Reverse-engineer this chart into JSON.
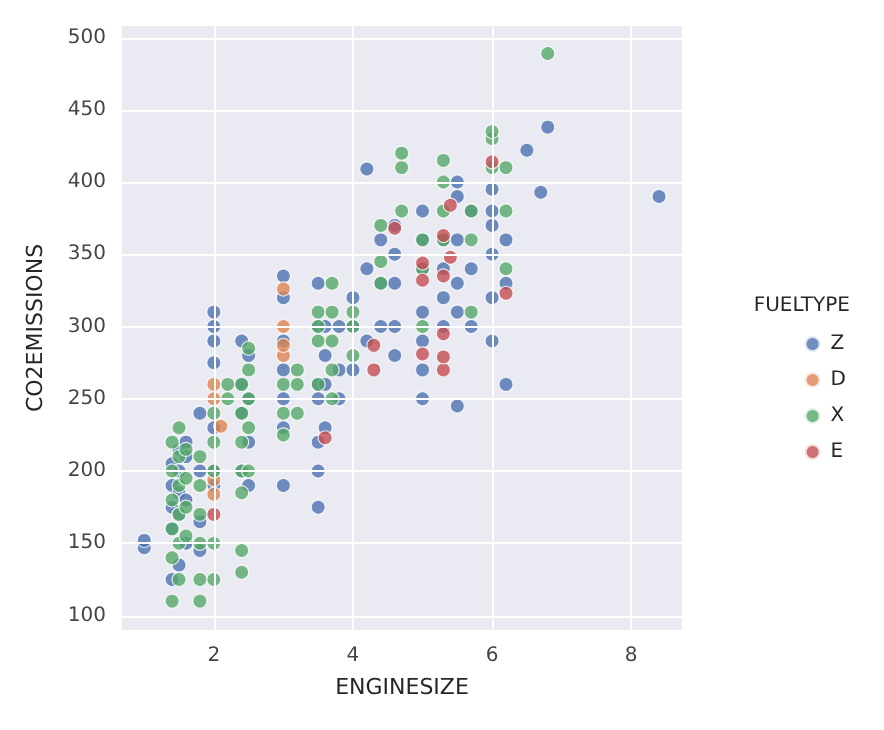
{
  "chart_data": {
    "type": "scatter",
    "xlabel": "ENGINESIZE",
    "ylabel": "CO2EMISSIONS",
    "legend_title": "FUELTYPE",
    "legend": "right",
    "grid": true,
    "marker": "circle",
    "xlim": [
      0.68,
      8.73
    ],
    "xticks": [
      2,
      4,
      6,
      8
    ],
    "ylim": [
      90,
      508
    ],
    "yticks": [
      100,
      150,
      200,
      250,
      300,
      350,
      400,
      450,
      500
    ],
    "series": [
      {
        "name": "Z",
        "color": "#4c72b0",
        "x": [
          1.0,
          1.0,
          1.4,
          1.4,
          1.4,
          1.4,
          1.4,
          1.5,
          1.5,
          1.5,
          1.5,
          1.5,
          1.6,
          1.6,
          1.6,
          1.6,
          1.8,
          1.8,
          1.8,
          1.8,
          2.0,
          2.0,
          2.0,
          2.0,
          2.0,
          2.0,
          2.0,
          2.4,
          2.4,
          2.4,
          2.4,
          2.5,
          2.5,
          2.5,
          2.5,
          3.0,
          3.0,
          3.0,
          3.0,
          3.0,
          3.0,
          3.0,
          3.5,
          3.5,
          3.5,
          3.5,
          3.5,
          3.5,
          3.5,
          3.6,
          3.6,
          3.6,
          3.6,
          3.8,
          3.8,
          3.8,
          4.0,
          4.0,
          4.0,
          4.2,
          4.2,
          4.2,
          4.4,
          4.4,
          4.4,
          4.6,
          4.6,
          4.6,
          4.6,
          4.6,
          5.0,
          5.0,
          5.0,
          5.0,
          5.0,
          5.0,
          5.0,
          5.3,
          5.3,
          5.3,
          5.3,
          5.5,
          5.5,
          5.5,
          5.5,
          5.5,
          5.5,
          5.7,
          5.7,
          5.7,
          6.0,
          6.0,
          6.0,
          6.0,
          6.0,
          6.0,
          6.2,
          6.2,
          6.2,
          6.5,
          6.7,
          6.8,
          8.4
        ],
        "values": [
          147,
          152,
          125,
          160,
          175,
          190,
          205,
          135,
          170,
          185,
          200,
          215,
          150,
          180,
          210,
          220,
          145,
          165,
          200,
          240,
          190,
          200,
          230,
          275,
          290,
          300,
          310,
          200,
          240,
          260,
          290,
          190,
          220,
          250,
          280,
          190,
          230,
          250,
          270,
          290,
          320,
          335,
          175,
          200,
          220,
          250,
          260,
          300,
          330,
          230,
          260,
          280,
          300,
          250,
          270,
          300,
          270,
          300,
          320,
          290,
          340,
          409,
          300,
          330,
          360,
          280,
          300,
          330,
          350,
          370,
          250,
          270,
          290,
          310,
          340,
          360,
          380,
          300,
          320,
          340,
          360,
          245,
          310,
          330,
          360,
          390,
          400,
          300,
          340,
          380,
          290,
          320,
          350,
          370,
          380,
          395,
          260,
          330,
          360,
          422,
          393,
          438,
          390
        ]
      },
      {
        "name": "D",
        "color": "#dd8452",
        "x": [
          2.0,
          2.0,
          2.0,
          2.0,
          2.1,
          3.0,
          3.0,
          3.0,
          3.0
        ],
        "values": [
          184,
          194,
          250,
          260,
          231,
          280,
          287,
          300,
          326
        ]
      },
      {
        "name": "X",
        "color": "#55a868",
        "x": [
          1.4,
          1.4,
          1.4,
          1.4,
          1.4,
          1.4,
          1.5,
          1.5,
          1.5,
          1.5,
          1.5,
          1.5,
          1.6,
          1.6,
          1.6,
          1.6,
          1.8,
          1.8,
          1.8,
          1.8,
          1.8,
          1.8,
          2.0,
          2.0,
          2.0,
          2.0,
          2.0,
          2.2,
          2.2,
          2.4,
          2.4,
          2.4,
          2.4,
          2.4,
          2.4,
          2.4,
          2.5,
          2.5,
          2.5,
          2.5,
          2.5,
          3.0,
          3.0,
          3.0,
          3.2,
          3.2,
          3.2,
          3.5,
          3.5,
          3.5,
          3.5,
          3.7,
          3.7,
          3.7,
          3.7,
          3.7,
          4.0,
          4.0,
          4.0,
          4.4,
          4.4,
          4.4,
          4.7,
          4.7,
          4.7,
          5.0,
          5.0,
          5.0,
          5.3,
          5.3,
          5.3,
          5.3,
          5.7,
          5.7,
          5.7,
          6.0,
          6.0,
          6.0,
          6.2,
          6.2,
          6.2,
          6.8
        ],
        "values": [
          110,
          140,
          160,
          180,
          200,
          220,
          125,
          150,
          170,
          190,
          210,
          230,
          155,
          175,
          195,
          215,
          110,
          125,
          150,
          170,
          190,
          210,
          125,
          150,
          200,
          220,
          240,
          250,
          260,
          130,
          145,
          185,
          200,
          220,
          240,
          260,
          200,
          230,
          250,
          270,
          285,
          225,
          240,
          260,
          240,
          260,
          270,
          260,
          290,
          300,
          310,
          250,
          270,
          290,
          310,
          330,
          280,
          300,
          310,
          330,
          345,
          370,
          380,
          410,
          420,
          300,
          340,
          360,
          360,
          380,
          400,
          415,
          310,
          360,
          380,
          410,
          430,
          435,
          340,
          380,
          410,
          489
        ]
      },
      {
        "name": "E",
        "color": "#c44e52",
        "x": [
          2.0,
          3.6,
          4.3,
          4.3,
          4.6,
          5.0,
          5.0,
          5.0,
          5.3,
          5.3,
          5.3,
          5.3,
          5.3,
          5.4,
          5.4,
          6.0,
          6.2
        ],
        "values": [
          170,
          223,
          270,
          287,
          368,
          281,
          332,
          344,
          270,
          279,
          295,
          335,
          363,
          348,
          384,
          414,
          323
        ]
      }
    ]
  }
}
